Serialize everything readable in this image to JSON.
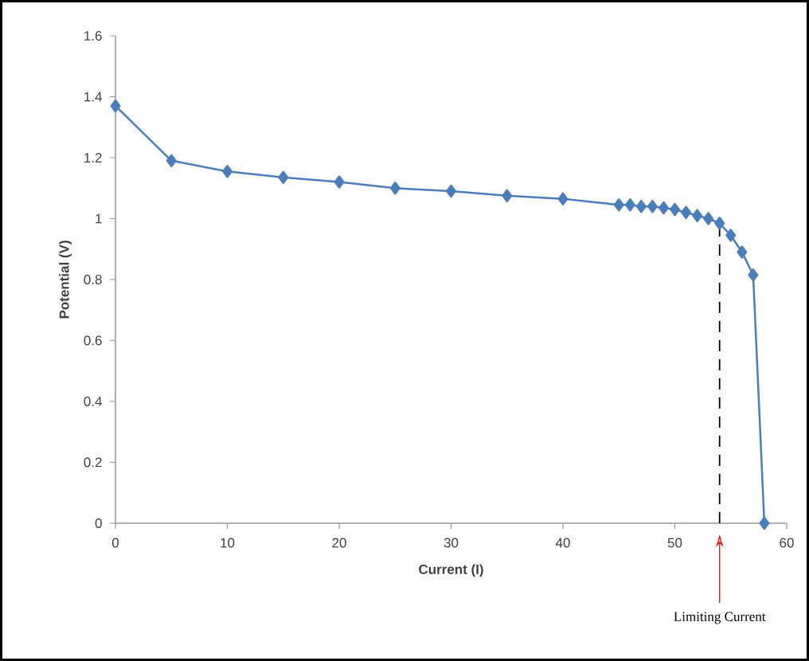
{
  "chart_data": {
    "type": "line",
    "xlabel": "Current  (I)",
    "ylabel": "Potential (V)",
    "x": [
      0,
      5,
      10,
      15,
      20,
      25,
      30,
      35,
      40,
      45,
      46,
      47,
      48,
      49,
      50,
      51,
      52,
      53,
      54,
      55,
      56,
      57,
      58
    ],
    "series": [
      {
        "color": "#4a7ebb",
        "values": [
          1.37,
          1.19,
          1.155,
          1.135,
          1.12,
          1.1,
          1.09,
          1.075,
          1.065,
          1.045,
          1.045,
          1.04,
          1.04,
          1.035,
          1.03,
          1.02,
          1.01,
          1.0,
          0.985,
          0.945,
          0.89,
          0.815,
          0
        ]
      }
    ],
    "xlim": [
      0,
      60
    ],
    "xticks": [
      0,
      10,
      20,
      30,
      40,
      50,
      60
    ],
    "ylim": [
      0,
      1.6
    ],
    "yticks": [
      0,
      0.2,
      0.4,
      0.6,
      0.8,
      1,
      1.2,
      1.4,
      1.6
    ],
    "marker": "diamond",
    "line_style": "solid",
    "grid": false,
    "ref_lines": [
      {
        "axis": "x",
        "value": 54,
        "label": "Limiting Current",
        "color": "#000000",
        "line_style": "dashed"
      }
    ]
  }
}
